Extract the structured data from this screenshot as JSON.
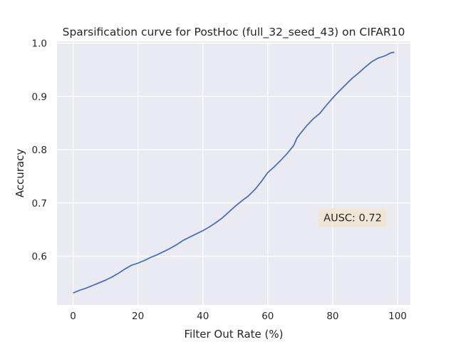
{
  "chart_data": {
    "type": "line",
    "title": "Sparsification curve for PostHoc (full_32_seed_43) on CIFAR10",
    "xlabel": "Filter Out Rate (%)",
    "ylabel": "Accuracy",
    "xlim": [
      -4.95,
      103.95
    ],
    "ylim": [
      0.5085,
      1.0035
    ],
    "xticks": [
      0,
      20,
      40,
      60,
      80,
      100
    ],
    "yticks": [
      0.6,
      0.7,
      0.8,
      0.9,
      1.0
    ],
    "xtick_labels": [
      "0",
      "20",
      "40",
      "60",
      "80",
      "100"
    ],
    "ytick_labels": [
      "0.6",
      "0.7",
      "0.8",
      "0.9",
      "1.0"
    ],
    "grid": true,
    "series": [
      {
        "color": "#4c72b0",
        "x": [
          0,
          2,
          4,
          6,
          8,
          10,
          12,
          14,
          16,
          18,
          20,
          22,
          24,
          26,
          28,
          30,
          32,
          34,
          36,
          38,
          40,
          42,
          44,
          46,
          48,
          50,
          52,
          54,
          56,
          58,
          60,
          62,
          64,
          66,
          68,
          69,
          70,
          72,
          74,
          76,
          78,
          80,
          82,
          84,
          86,
          88,
          90,
          92,
          94,
          96,
          98,
          99
        ],
        "values": [
          0.531,
          0.536,
          0.54,
          0.545,
          0.55,
          0.555,
          0.561,
          0.568,
          0.576,
          0.583,
          0.587,
          0.592,
          0.598,
          0.603,
          0.609,
          0.615,
          0.622,
          0.63,
          0.636,
          0.642,
          0.648,
          0.655,
          0.663,
          0.672,
          0.683,
          0.694,
          0.704,
          0.713,
          0.725,
          0.74,
          0.757,
          0.768,
          0.78,
          0.793,
          0.808,
          0.822,
          0.83,
          0.845,
          0.858,
          0.868,
          0.883,
          0.897,
          0.91,
          0.922,
          0.934,
          0.944,
          0.955,
          0.965,
          0.972,
          0.976,
          0.982,
          0.983
        ]
      }
    ],
    "annotation": {
      "text": "AUSC: 0.72",
      "box_color": "#f3e4cf"
    }
  }
}
